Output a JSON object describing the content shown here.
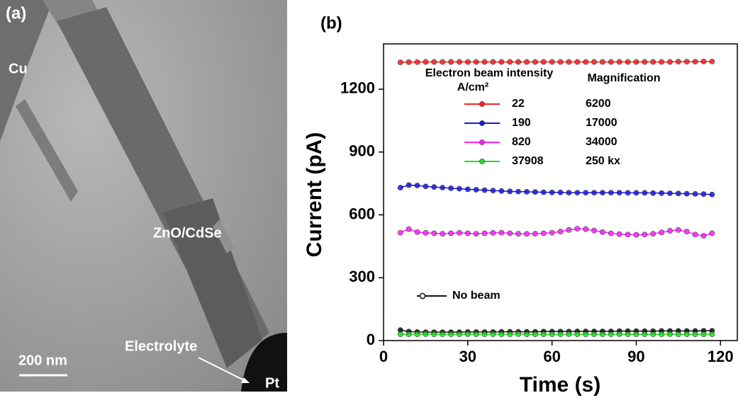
{
  "panel_a": {
    "label": "(a)",
    "cu": "Cu",
    "sample": "ZnO/CdSe",
    "electrolyte": "Electrolyte",
    "pt": "Pt",
    "scale": "200 nm"
  },
  "chart_data": {
    "type": "line",
    "label": "(b)",
    "xlabel": "Time (s)",
    "ylabel": "Current (pA)",
    "legend_title": "Electron beam intensity",
    "legend_unit": "A/cm²",
    "legend_title_2": "Magnification",
    "xlim": [
      0,
      126
    ],
    "xticks": [
      0,
      30,
      60,
      90,
      120
    ],
    "ylim": [
      0,
      1416
    ],
    "yticks": [
      0,
      300,
      600,
      900,
      1200
    ],
    "x": [
      6,
      9,
      12,
      15,
      18,
      21,
      24,
      27,
      30,
      33,
      36,
      39,
      42,
      45,
      48,
      51,
      54,
      57,
      60,
      63,
      66,
      69,
      72,
      75,
      78,
      81,
      84,
      87,
      90,
      93,
      96,
      99,
      102,
      105,
      108,
      111,
      114,
      117
    ],
    "series": [
      {
        "name": "No beam",
        "color": "#111111",
        "values": [
          50,
          43,
          41,
          40,
          40,
          40,
          40,
          40,
          41,
          41,
          41,
          41,
          42,
          42,
          42,
          42,
          42,
          43,
          43,
          43,
          43,
          44,
          44,
          44,
          44,
          44,
          45,
          45,
          45,
          45,
          45,
          46,
          46,
          46,
          46,
          46,
          47,
          47
        ]
      },
      {
        "name": "22",
        "magnification": "6200",
        "color": "#ff2020",
        "values": [
          1328,
          1329,
          1329,
          1330,
          1330,
          1330,
          1330,
          1330,
          1330,
          1330,
          1330,
          1330,
          1330,
          1330,
          1330,
          1330,
          1330,
          1330,
          1330,
          1330,
          1330,
          1330,
          1330,
          1330,
          1330,
          1330,
          1330,
          1330,
          1330,
          1330,
          1330,
          1330,
          1330,
          1331,
          1331,
          1331,
          1332,
          1332
        ]
      },
      {
        "name": "190",
        "magnification": "17000",
        "color": "#1a1adf",
        "values": [
          730,
          742,
          740,
          736,
          733,
          730,
          727,
          725,
          722,
          720,
          718,
          716,
          714,
          712,
          711,
          710,
          709,
          708,
          707,
          707,
          706,
          706,
          706,
          706,
          706,
          706,
          706,
          705,
          705,
          705,
          704,
          704,
          703,
          702,
          701,
          700,
          699,
          697
        ]
      },
      {
        "name": "820",
        "magnification": "34000",
        "color": "#ff22ff",
        "values": [
          515,
          532,
          518,
          514,
          512,
          510,
          512,
          514,
          512,
          510,
          512,
          514,
          515,
          512,
          510,
          509,
          510,
          512,
          515,
          520,
          528,
          534,
          532,
          525,
          518,
          512,
          508,
          506,
          505,
          506,
          510,
          516,
          524,
          528,
          520,
          506,
          500,
          512
        ]
      },
      {
        "name": "37908",
        "magnification": "250 kx",
        "color": "#22dd22",
        "values": [
          30,
          30,
          30,
          31,
          30,
          30,
          30,
          30,
          31,
          30,
          30,
          30,
          30,
          30,
          31,
          30,
          30,
          30,
          30,
          30,
          31,
          30,
          30,
          30,
          30,
          30,
          31,
          30,
          30,
          30,
          30,
          30,
          31,
          30,
          30,
          30,
          30,
          30
        ]
      }
    ]
  }
}
